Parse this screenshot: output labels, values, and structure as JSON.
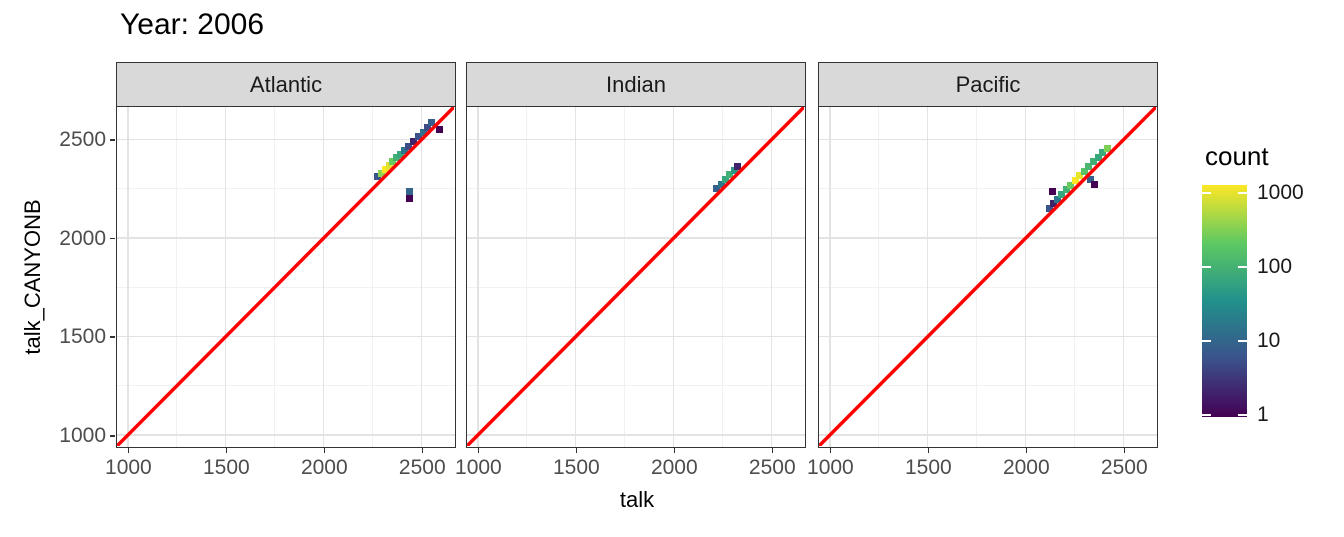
{
  "chart_data": {
    "type": "heatmap",
    "title": "Year: 2006",
    "xlabel": "talk",
    "ylabel": "talk_CANYONB",
    "facets": [
      "Atlantic",
      "Indian",
      "Pacific"
    ],
    "x_ticks": [
      1000,
      1500,
      2000,
      2500
    ],
    "y_ticks": [
      1000,
      1500,
      2000,
      2500
    ],
    "minor_ticks": [
      1250,
      1750,
      2250
    ],
    "xlim": [
      945,
      2665
    ],
    "ylim": [
      945,
      2665
    ],
    "bin_width": 35,
    "grid": true,
    "reference_line": {
      "slope": 1,
      "intercept": 0,
      "color": "#ff0000",
      "width": 3.5
    },
    "legend": {
      "title": "count",
      "scale": "log10",
      "ticks": [
        1000,
        100,
        10,
        1
      ],
      "limits": [
        1,
        1000
      ],
      "palette": "viridis"
    },
    "palette_stops": [
      "#440154",
      "#3b528b",
      "#21918c",
      "#5ec962",
      "#fde725"
    ],
    "colors": {
      "grid_major": "#e3e3e3",
      "grid_minor": "#f1f1f1",
      "panel_border": "#333333",
      "strip_bg": "#d9d9d9",
      "axis_text": "#4d4d4d",
      "tick_mark": "#333333",
      "title_text": "#000000"
    },
    "series": [
      {
        "facet": "Atlantic",
        "tiles": [
          [
            2275,
            2310,
            6
          ],
          [
            2295,
            2330,
            300
          ],
          [
            2315,
            2350,
            1000
          ],
          [
            2335,
            2370,
            700
          ],
          [
            2352,
            2390,
            200
          ],
          [
            2372,
            2408,
            80
          ],
          [
            2392,
            2425,
            60
          ],
          [
            2410,
            2445,
            15
          ],
          [
            2435,
            2465,
            5
          ],
          [
            2460,
            2490,
            2
          ],
          [
            2483,
            2515,
            6
          ],
          [
            2507,
            2538,
            12
          ],
          [
            2530,
            2562,
            5
          ],
          [
            2550,
            2585,
            8
          ],
          [
            2590,
            2550,
            1
          ],
          [
            2440,
            2235,
            10
          ],
          [
            2437,
            2200,
            1
          ]
        ]
      },
      {
        "facet": "Indian",
        "tiles": [
          [
            2220,
            2250,
            8
          ],
          [
            2242,
            2274,
            15
          ],
          [
            2264,
            2297,
            60
          ],
          [
            2286,
            2320,
            80
          ],
          [
            2308,
            2343,
            40
          ],
          [
            2328,
            2365,
            2
          ]
        ]
      },
      {
        "facet": "Pacific",
        "tiles": [
          [
            2120,
            2150,
            6
          ],
          [
            2140,
            2173,
            2
          ],
          [
            2160,
            2198,
            15
          ],
          [
            2183,
            2222,
            60
          ],
          [
            2206,
            2246,
            80
          ],
          [
            2230,
            2268,
            200
          ],
          [
            2253,
            2292,
            1000
          ],
          [
            2276,
            2315,
            800
          ],
          [
            2300,
            2340,
            150
          ],
          [
            2323,
            2363,
            100
          ],
          [
            2346,
            2387,
            80
          ],
          [
            2370,
            2410,
            60
          ],
          [
            2393,
            2433,
            70
          ],
          [
            2416,
            2455,
            250
          ],
          [
            2135,
            2235,
            1
          ],
          [
            2330,
            2297,
            8
          ],
          [
            2352,
            2272,
            1
          ]
        ]
      }
    ]
  }
}
